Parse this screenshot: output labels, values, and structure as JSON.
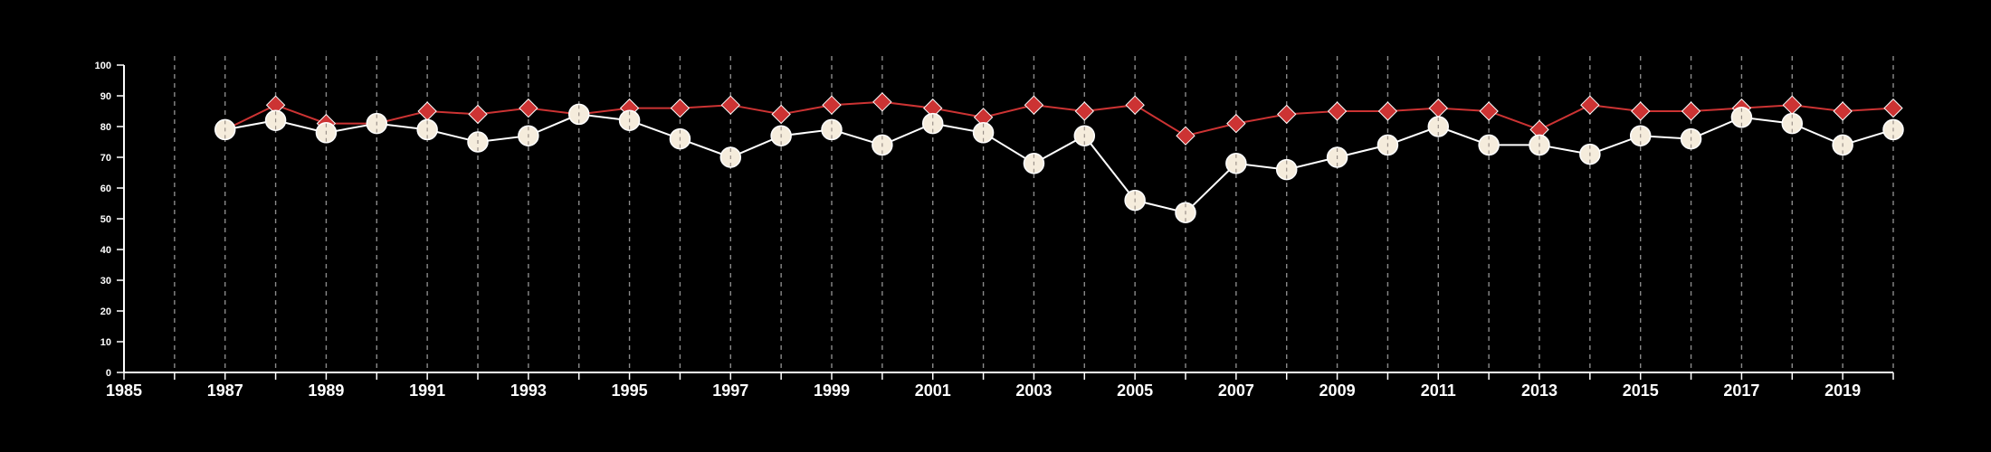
{
  "chart_data": {
    "type": "line",
    "title": "",
    "xlabel": "",
    "ylabel": "",
    "xlim": [
      1985,
      2020
    ],
    "ylim": [
      0,
      100
    ],
    "x_ticks": [
      1985,
      1987,
      1989,
      1991,
      1993,
      1995,
      1997,
      1999,
      2001,
      2003,
      2005,
      2007,
      2009,
      2011,
      2013,
      2015,
      2017,
      2019
    ],
    "y_ticks": [
      0,
      10,
      20,
      30,
      40,
      50,
      60,
      70,
      80,
      90,
      100
    ],
    "grid": "vertical dashed lines at each year",
    "legend": "none",
    "background": "#000000",
    "x": [
      1987,
      1988,
      1989,
      1990,
      1991,
      1992,
      1993,
      1994,
      1995,
      1996,
      1997,
      1998,
      1999,
      2000,
      2001,
      2002,
      2003,
      2004,
      2005,
      2006,
      2007,
      2008,
      2009,
      2010,
      2011,
      2012,
      2013,
      2014,
      2015,
      2016,
      2017,
      2018,
      2019,
      2020
    ],
    "series": [
      {
        "marker": "diamond",
        "color": "#cc3333",
        "values": [
          79,
          87,
          81,
          81,
          85,
          84,
          86,
          84,
          86,
          86,
          87,
          84,
          87,
          88,
          86,
          83,
          87,
          85,
          87,
          77,
          81,
          84,
          85,
          85,
          86,
          85,
          79,
          87,
          85,
          85,
          86,
          87,
          85,
          86
        ]
      },
      {
        "marker": "circle",
        "color": "#f5ecdc",
        "line_color": "#ffffff",
        "values": [
          79,
          82,
          78,
          81,
          79,
          75,
          77,
          84,
          82,
          76,
          70,
          77,
          79,
          74,
          81,
          78,
          68,
          77,
          56,
          52,
          68,
          66,
          70,
          74,
          80,
          74,
          74,
          71,
          77,
          76,
          83,
          81,
          74,
          79
        ]
      }
    ]
  }
}
